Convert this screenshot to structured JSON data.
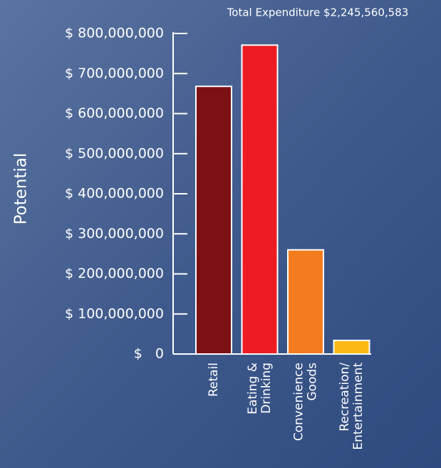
{
  "chart_data": {
    "type": "bar",
    "title": "Total Expenditure $2,245,560,583",
    "y_label": "Potential",
    "categories": [
      "Retail",
      "Eating &\nDrinking",
      "Convenience\nGoods",
      "Recreation/\nEntertainment"
    ],
    "values": [
      668000000,
      771000000,
      260000000,
      34000000
    ],
    "colors": [
      "#7b1113",
      "#ed1c24",
      "#f47c20",
      "#fdb913"
    ],
    "ylim": [
      0,
      800000000
    ],
    "yticks": [
      {
        "value": 0,
        "label": "$   0"
      },
      {
        "value": 100000000,
        "label": "$ 100,000,000"
      },
      {
        "value": 200000000,
        "label": "$ 200,000,000"
      },
      {
        "value": 300000000,
        "label": "$ 300,000,000"
      },
      {
        "value": 400000000,
        "label": "$ 400,000,000"
      },
      {
        "value": 500000000,
        "label": "$ 500,000,000"
      },
      {
        "value": 600000000,
        "label": "$ 600,000,000"
      },
      {
        "value": 700000000,
        "label": "$ 700,000,000"
      },
      {
        "value": 800000000,
        "label": "$ 800,000,000"
      }
    ]
  }
}
